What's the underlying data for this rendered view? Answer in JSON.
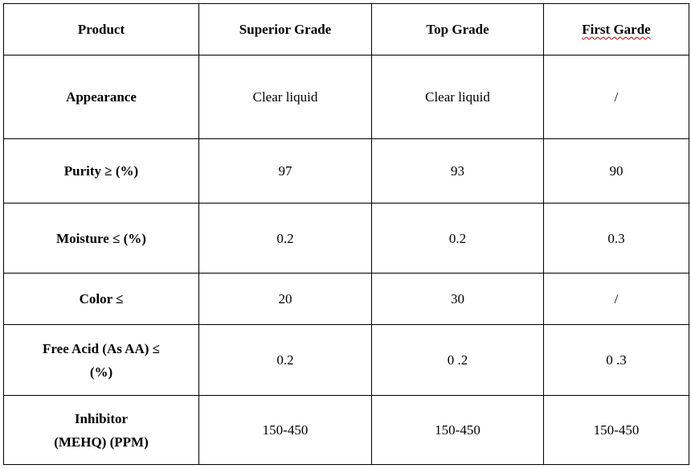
{
  "table": {
    "headers": [
      "Product",
      "Superior Grade",
      "Top Grade",
      "First Garde"
    ],
    "rows": [
      {
        "label_lines": [
          "Appearance"
        ],
        "values": [
          "Clear liquid",
          "Clear liquid",
          "/"
        ]
      },
      {
        "label_lines": [
          "Purity ≥ (%)"
        ],
        "values": [
          "97",
          "93",
          "90"
        ]
      },
      {
        "label_lines": [
          "Moisture ≤ (%)"
        ],
        "values": [
          "0.2",
          "0.2",
          "0.3"
        ]
      },
      {
        "label_lines": [
          "Color ≤"
        ],
        "values": [
          "20",
          "30",
          "/"
        ]
      },
      {
        "label_lines": [
          "Free Acid (As AA) ≤",
          "(%)"
        ],
        "values": [
          "0.2",
          "0 .2",
          "0 .3"
        ]
      },
      {
        "label_lines": [
          "Inhibitor",
          "(MEHQ) (PPM)"
        ],
        "values": [
          "150-450",
          "150-450",
          "150-450"
        ]
      }
    ],
    "spellcheck_flagged_header": "First Garde"
  }
}
